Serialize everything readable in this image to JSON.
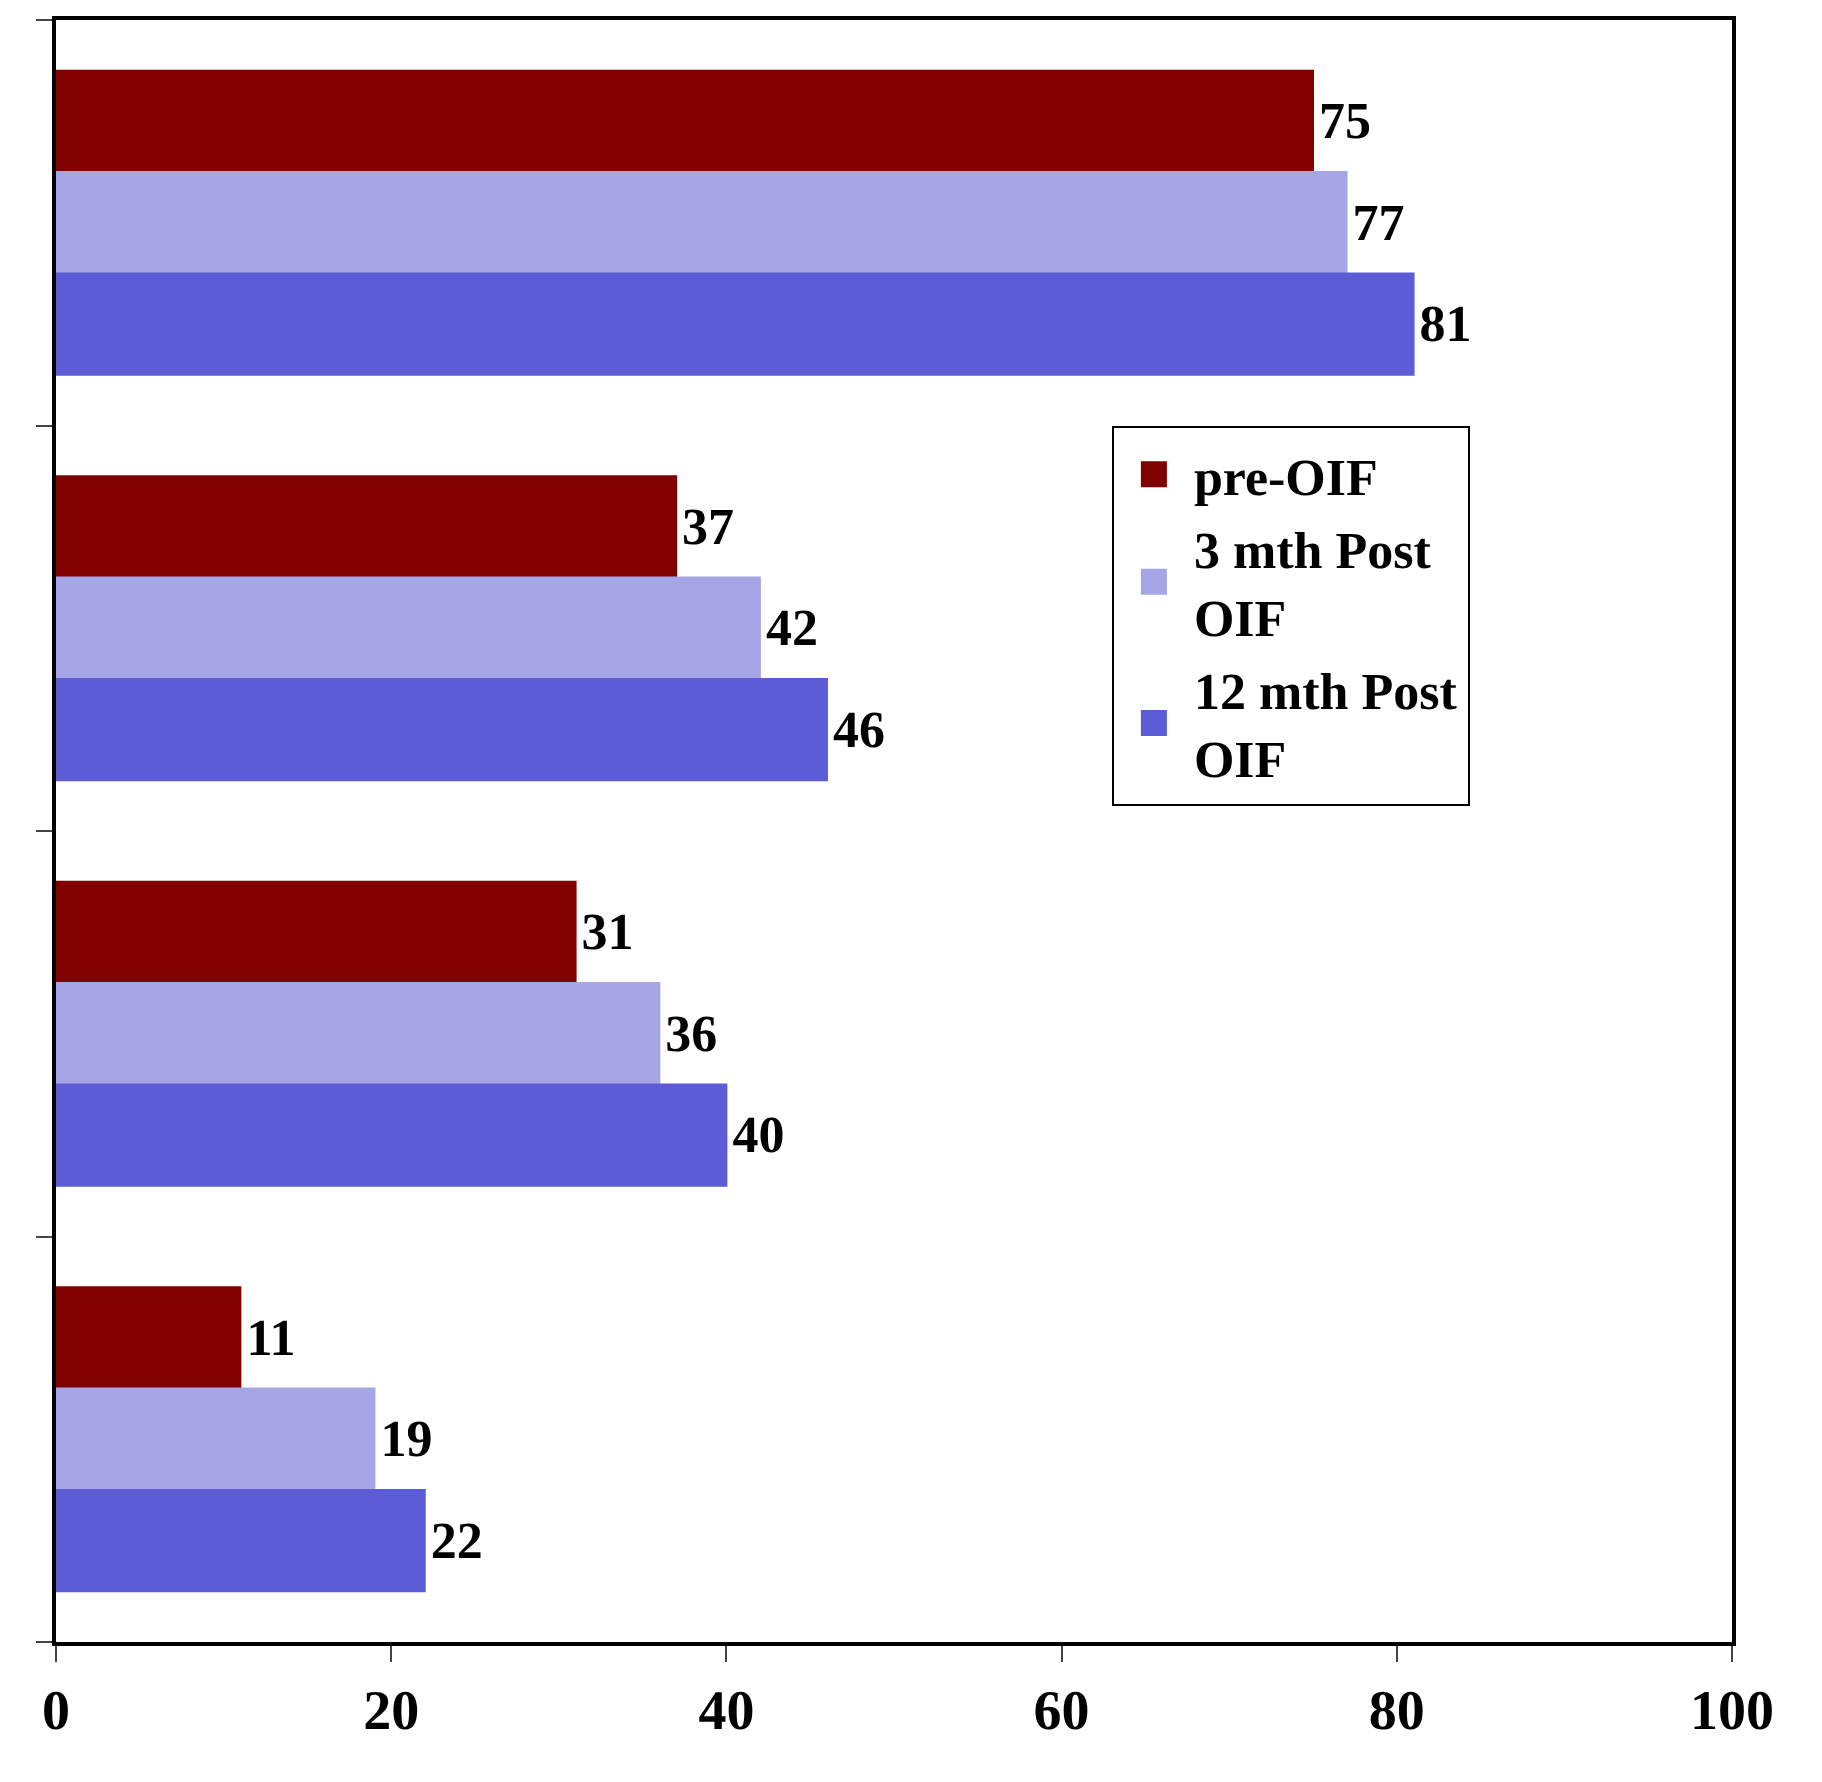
{
  "chart_data": {
    "type": "bar",
    "orientation": "horizontal",
    "categories": [
      null,
      null,
      null,
      null
    ],
    "series": [
      {
        "name": "pre-OIF",
        "color": "#800000",
        "values": [
          75,
          37,
          31,
          11
        ]
      },
      {
        "name": "3 mth Post OIF",
        "color": "#a6a6e6",
        "values": [
          77,
          42,
          36,
          19
        ]
      },
      {
        "name": "12 mth Post OIF",
        "color": "#5c5cd6",
        "values": [
          81,
          46,
          40,
          22
        ]
      }
    ],
    "xlim": [
      0,
      100
    ],
    "xticks": [
      0,
      20,
      40,
      60,
      80,
      100
    ],
    "data_labels": true,
    "legend": "right",
    "tick_labels": "x"
  }
}
